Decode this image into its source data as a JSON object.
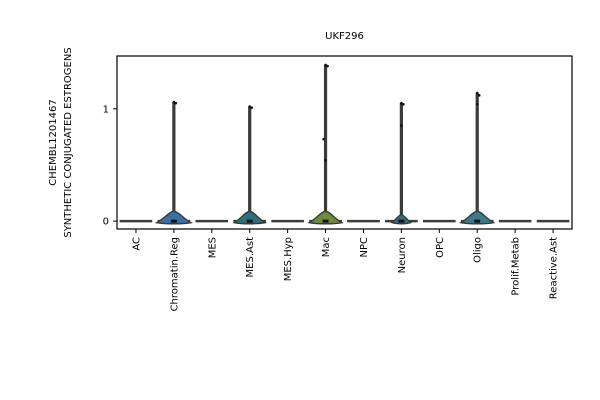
{
  "chart_data": {
    "type": "violin",
    "title": "UKF296",
    "ylabel_lines": [
      "SYNTHETIC CONJUGATED ESTROGENS",
      "CHEMBL1201467"
    ],
    "xlabel": "",
    "categories": [
      "AC",
      "Chromatin.Reg",
      "MES",
      "MES.Ast",
      "MES.Hyp",
      "Mac",
      "NPC",
      "Neuron",
      "OPC",
      "Oligo",
      "Prolif.Metab",
      "Reactive.Ast"
    ],
    "ylim": [
      -0.07,
      1.47
    ],
    "yticks": [
      0,
      1
    ],
    "ytick_labels": [
      "0",
      "1"
    ],
    "grid": false,
    "series": [
      {
        "category": "AC",
        "max": 0.0,
        "body_width": 0.0,
        "body_height": 0.0,
        "color": "#3b4a6b",
        "outliers": []
      },
      {
        "category": "Chromatin.Reg",
        "max": 1.06,
        "body_width": 1.0,
        "body_height": 0.07,
        "color": "#3a6ea5",
        "outliers": [
          1.06,
          1.05
        ]
      },
      {
        "category": "MES",
        "max": 0.0,
        "body_width": 0.0,
        "body_height": 0.0,
        "color": "#3b4a6b",
        "outliers": []
      },
      {
        "category": "MES.Ast",
        "max": 1.02,
        "body_width": 0.9,
        "body_height": 0.07,
        "color": "#2f6f7a",
        "outliers": [
          1.02,
          1.01
        ]
      },
      {
        "category": "MES.Hyp",
        "max": 0.0,
        "body_width": 0.0,
        "body_height": 0.0,
        "color": "#3b4a6b",
        "outliers": []
      },
      {
        "category": "Mac",
        "max": 1.39,
        "body_width": 0.95,
        "body_height": 0.07,
        "color": "#6f8a3a",
        "outliers": [
          1.39,
          1.38,
          0.73,
          0.54
        ]
      },
      {
        "category": "NPC",
        "max": 0.0,
        "body_width": 0.0,
        "body_height": 0.0,
        "color": "#3b4a6b",
        "outliers": []
      },
      {
        "category": "Neuron",
        "max": 1.05,
        "body_width": 0.55,
        "body_height": 0.04,
        "color": "#2f6f7a",
        "outliers": [
          1.05,
          1.04,
          0.85
        ]
      },
      {
        "category": "OPC",
        "max": 0.0,
        "body_width": 0.0,
        "body_height": 0.0,
        "color": "#3b4a6b",
        "outliers": []
      },
      {
        "category": "Oligo",
        "max": 1.14,
        "body_width": 0.95,
        "body_height": 0.07,
        "color": "#3a7a8a",
        "outliers": [
          1.14,
          1.12,
          1.04
        ]
      },
      {
        "category": "Prolif.Metab",
        "max": 0.0,
        "body_width": 0.0,
        "body_height": 0.0,
        "color": "#3b4a6b",
        "outliers": []
      },
      {
        "category": "Reactive.Ast",
        "max": 0.0,
        "body_width": 0.0,
        "body_height": 0.0,
        "color": "#3b4a6b",
        "outliers": []
      }
    ]
  }
}
